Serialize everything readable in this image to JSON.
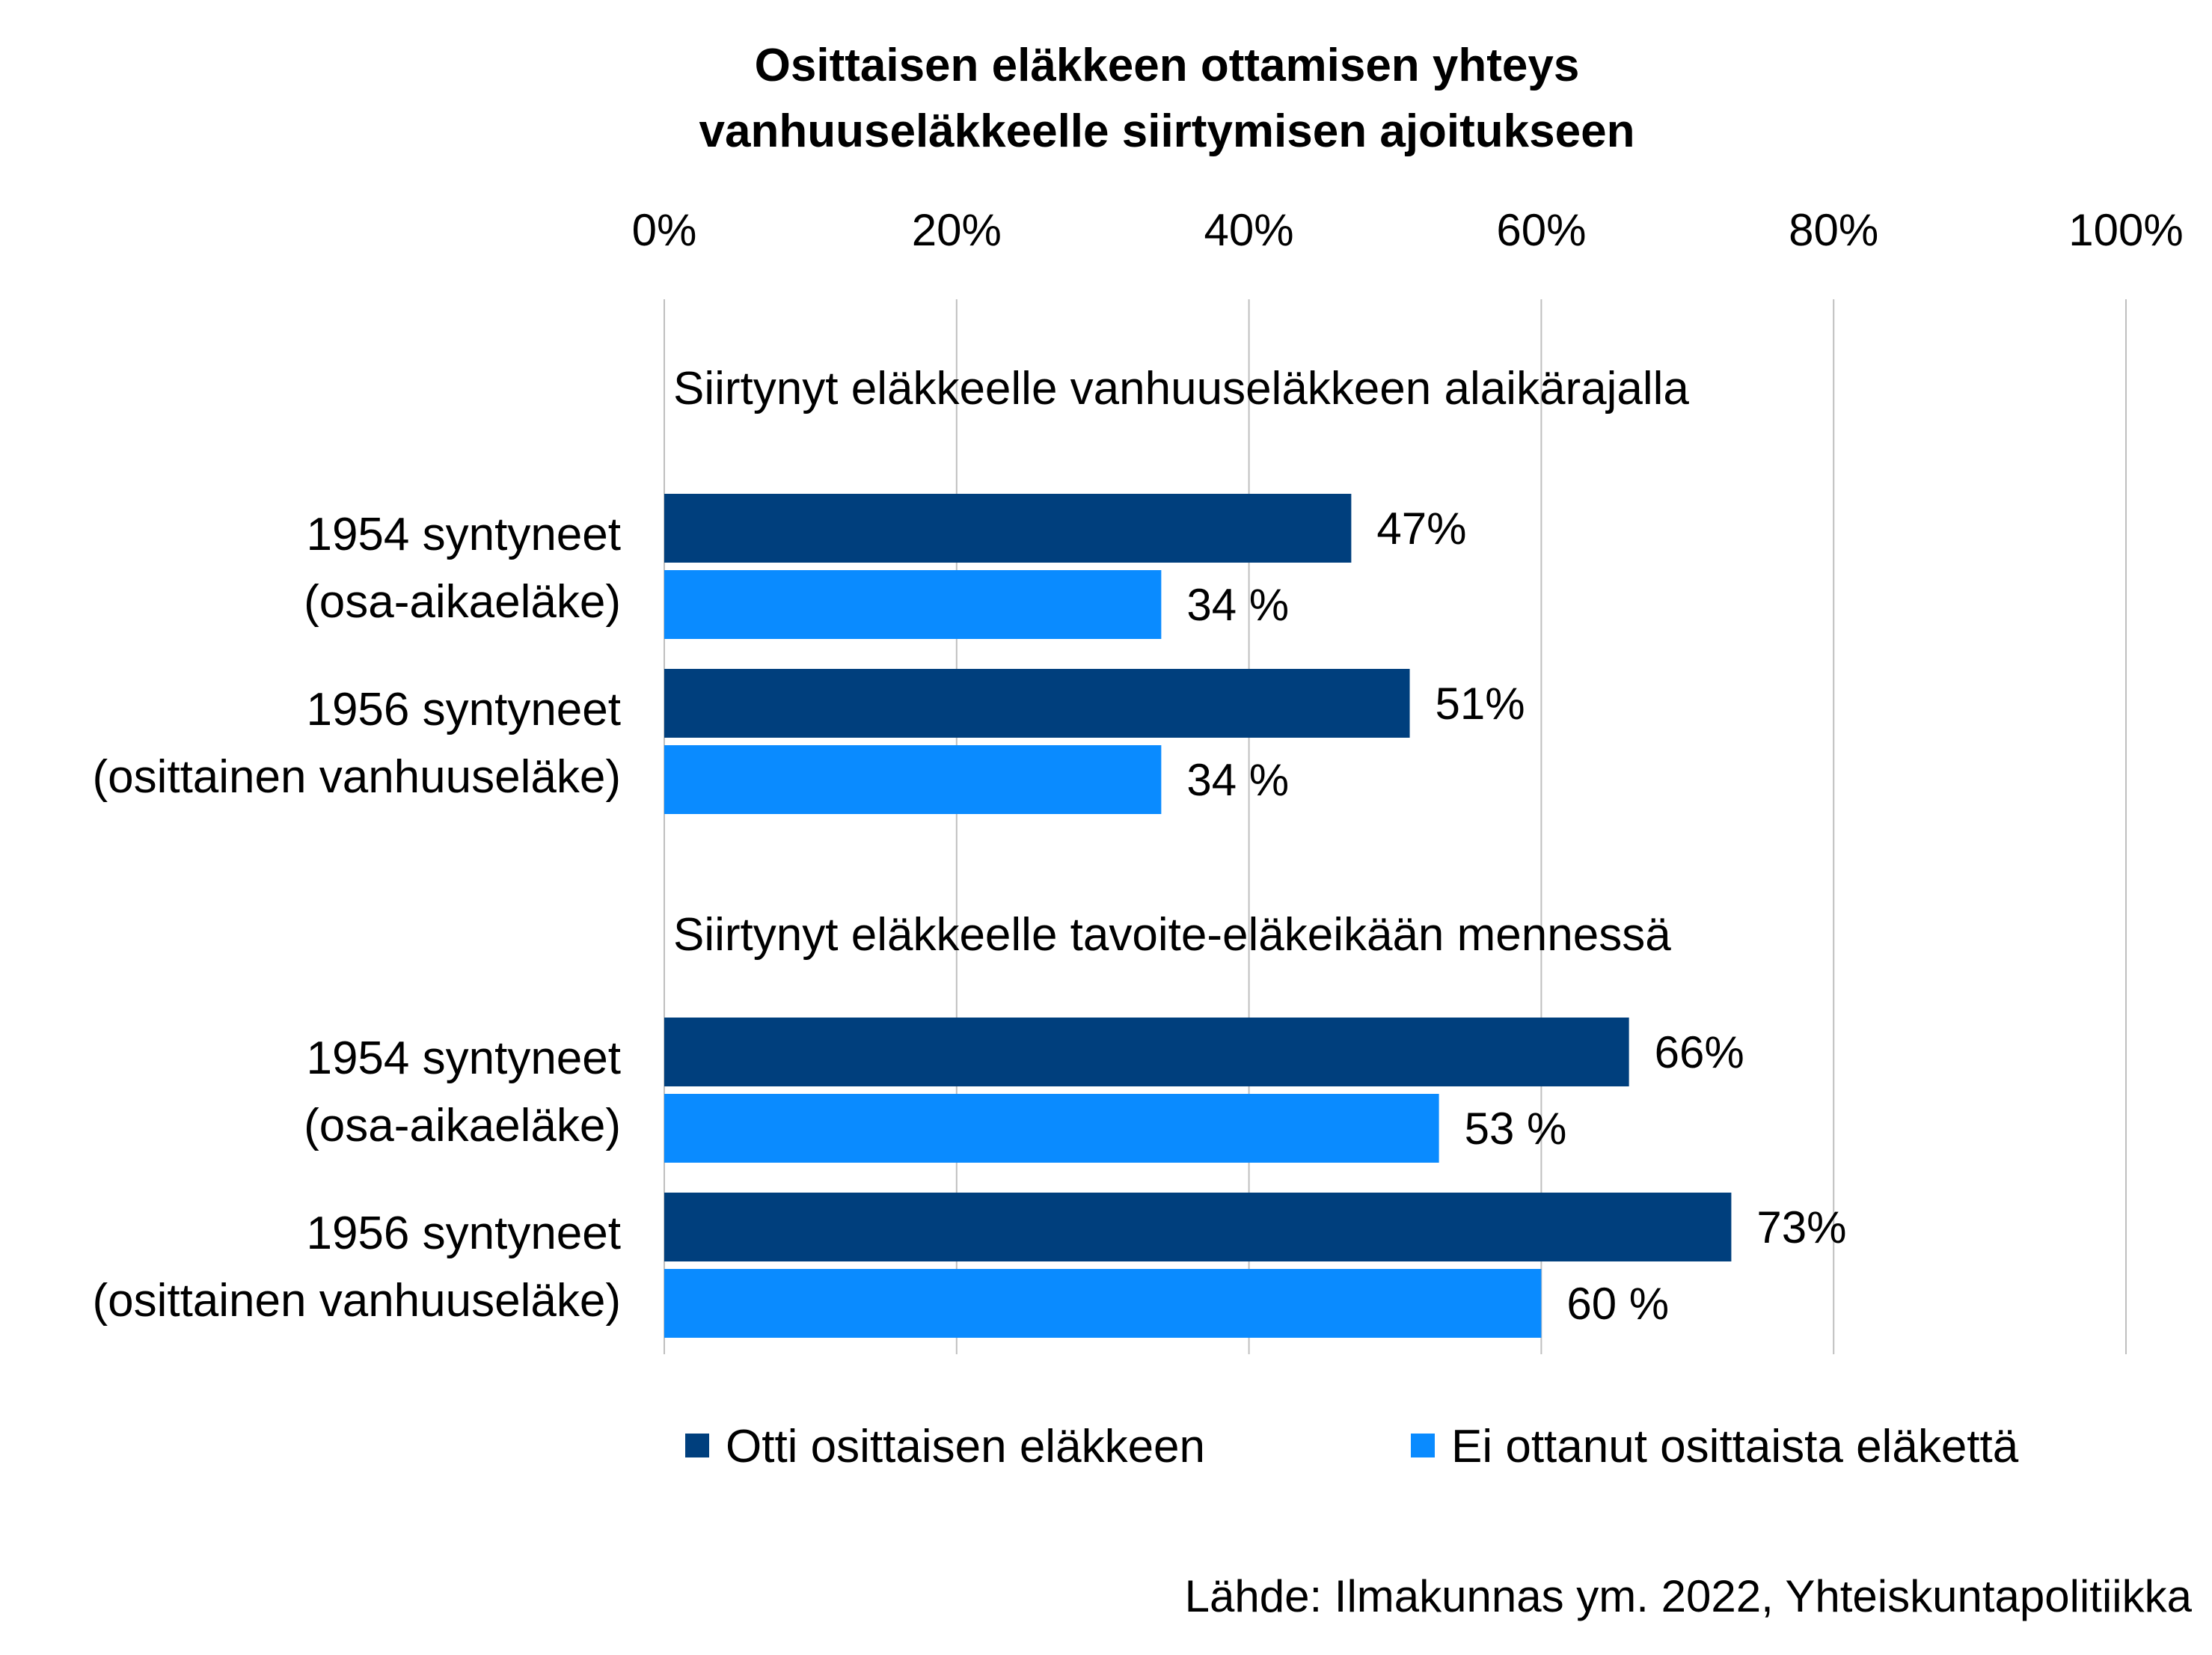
{
  "chart_data": {
    "type": "bar",
    "orientation": "horizontal",
    "title_lines": [
      "Osittaisen eläkkeen ottamisen yhteys",
      "vanhuuseläkkeelle siirtymisen ajoitukseen"
    ],
    "x_ticks": [
      "0%",
      "20%",
      "40%",
      "60%",
      "80%",
      "100%"
    ],
    "xlim": [
      0,
      100
    ],
    "grid": true,
    "legend_position": "bottom",
    "series": [
      {
        "name": "Otti osittaisen eläkkeen",
        "color": "#003F7D"
      },
      {
        "name": "Ei ottanut osittaista eläkettä",
        "color": "#0A8BFF"
      }
    ],
    "groups": [
      {
        "label": "Siirtynyt eläkkeelle vanhuuseläkkeen alaikärajalla",
        "categories": [
          {
            "line1": "1954 syntyneet",
            "line2": "(osa-aikaeläke)",
            "values": [
              47,
              34
            ],
            "labels": [
              "47%",
              "34 %"
            ]
          },
          {
            "line1": "1956 syntyneet",
            "line2": "(osittainen vanhuuseläke)",
            "values": [
              51,
              34
            ],
            "labels": [
              "51%",
              "34 %"
            ]
          }
        ]
      },
      {
        "label": "Siirtynyt eläkkeelle tavoite-eläkeikään mennessä",
        "categories": [
          {
            "line1": "1954 syntyneet",
            "line2": "(osa-aikaeläke)",
            "values": [
              66,
              53
            ],
            "labels": [
              "66%",
              "53 %"
            ]
          },
          {
            "line1": "1956 syntyneet",
            "line2": "(osittainen vanhuuseläke)",
            "values": [
              73,
              60
            ],
            "labels": [
              "73%",
              "60 %"
            ]
          }
        ]
      }
    ],
    "source": "Lähde: Ilmakunnas ym. 2022, Yhteiskuntapolitiikka"
  }
}
